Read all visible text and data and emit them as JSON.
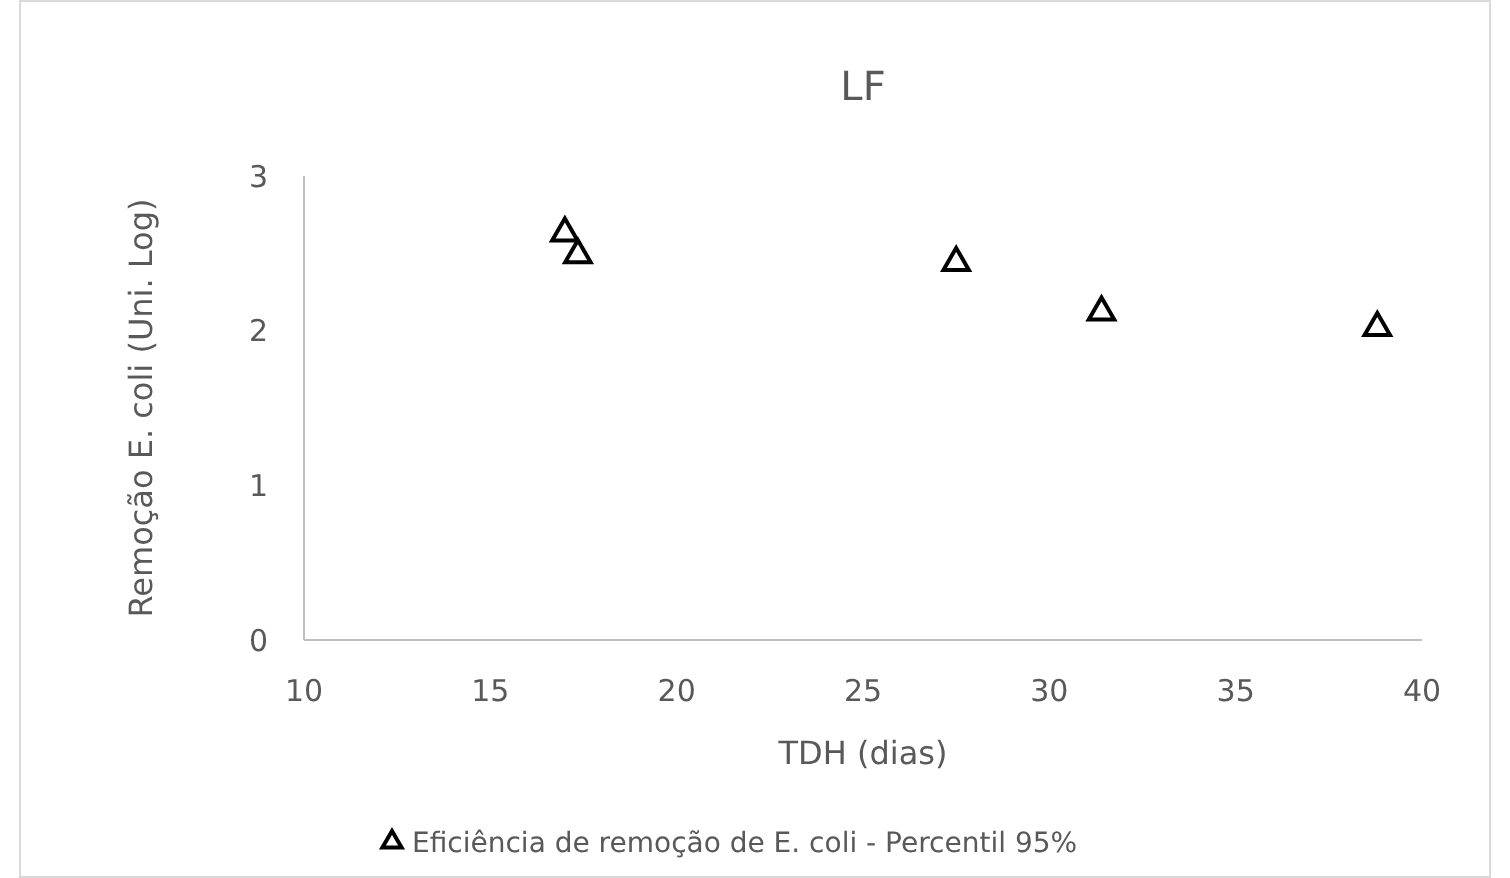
{
  "chart_data": {
    "type": "scatter",
    "title": "LF",
    "xlabel": "TDH (dias)",
    "ylabel": "Remoção E. coli (Uni. Log)",
    "x": [
      17.0,
      17.35,
      27.5,
      31.4,
      38.8
    ],
    "series": [
      {
        "name": "Eficiência de remoção de E. coli - Percentil 95%",
        "color": "#000000",
        "values": [
          2.63,
          2.49,
          2.44,
          2.12,
          2.02
        ]
      }
    ],
    "xlim": [
      10,
      40
    ],
    "xticks": [
      10,
      15,
      20,
      25,
      30,
      35,
      40
    ],
    "ylim": [
      0,
      3
    ],
    "yticks": [
      0,
      1,
      2,
      3
    ],
    "marker": "triangle",
    "legend": "bottom",
    "grid": false
  }
}
